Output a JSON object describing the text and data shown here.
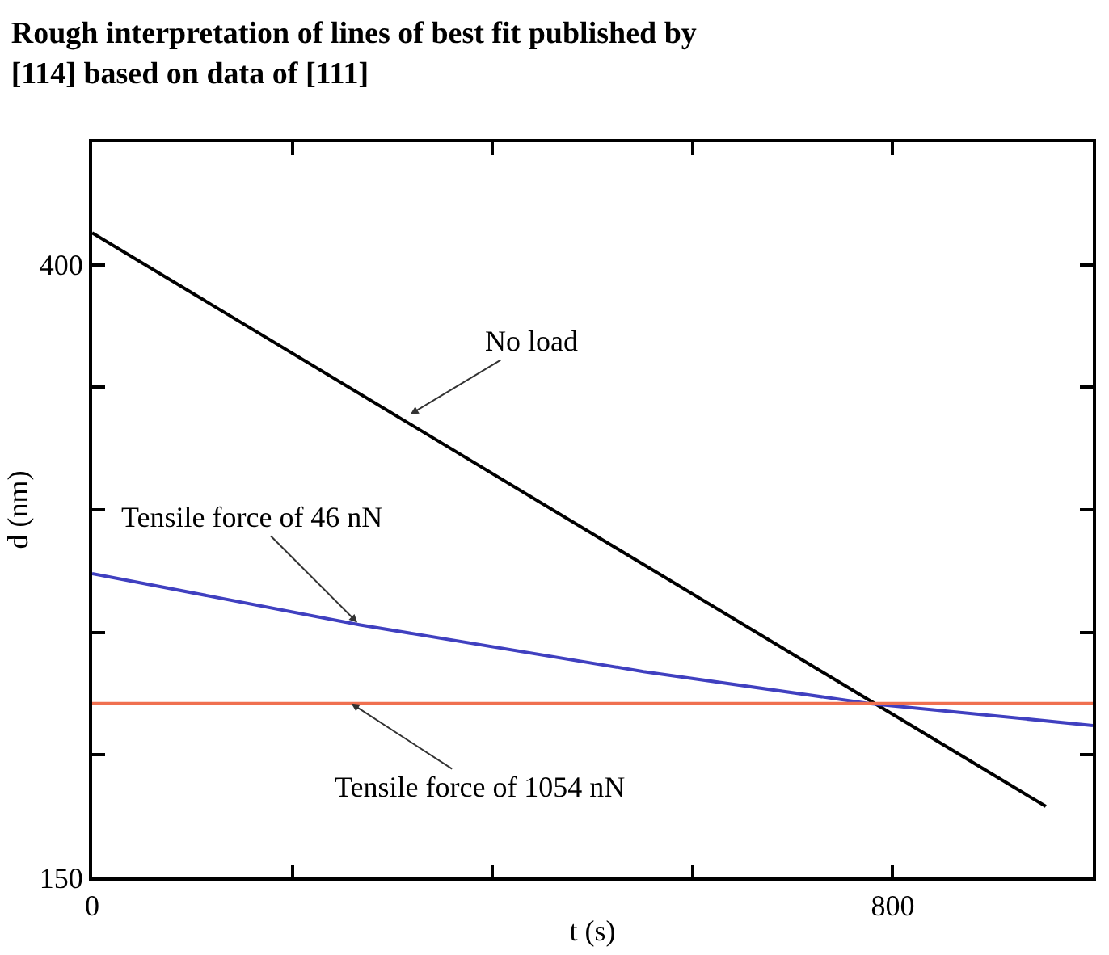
{
  "chart_data": {
    "type": "line",
    "title": "Rough interpretation of lines of best fit published by\n[114] based on data of [111]",
    "xlabel": "t (s)",
    "ylabel": "d (nm)",
    "series": [
      {
        "color": "#000000",
        "x": [
          0,
          953
        ],
        "values": [
          413,
          179
        ]
      },
      {
        "color": "#4040c0",
        "x": [
          0,
          268,
          551,
          776,
          1000
        ],
        "values": [
          274,
          253,
          234,
          221,
          212
        ]
      },
      {
        "color": "#f07050",
        "x": [
          0,
          1000
        ],
        "values": [
          221,
          221
        ]
      }
    ],
    "xlim": [
      0,
      1000
    ],
    "ylim": [
      150,
      450
    ],
    "xticks": [
      0,
      {
        "value": 200,
        "label": null
      },
      {
        "value": 400,
        "label": null
      },
      {
        "value": 600,
        "label": null
      },
      800
    ],
    "yticks": [
      150,
      {
        "value": 200,
        "label": null
      },
      {
        "value": 250,
        "label": null
      },
      {
        "value": 300,
        "label": null
      },
      {
        "value": 350,
        "label": null
      },
      400
    ],
    "annotations": [
      {
        "text": "No load",
        "x": 318,
        "y": 339
      },
      {
        "text": "Tensile force of 46 nN",
        "x": 265,
        "y": 254
      },
      {
        "text": "Tensile force of 1054 nN",
        "x": 259,
        "y": 221
      }
    ],
    "marker": "none",
    "line_style": "solid"
  }
}
